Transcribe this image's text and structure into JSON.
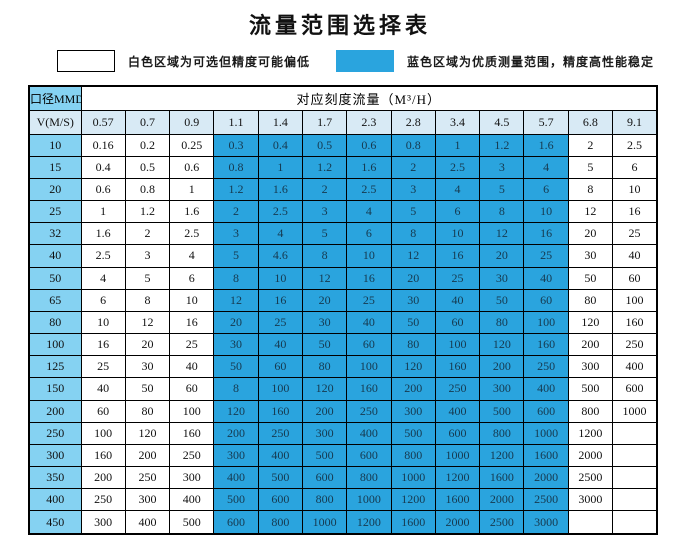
{
  "title": "流量范围选择表",
  "legend": {
    "white_label": "白色区域为可选但精度可能偏低",
    "blue_label": "蓝色区域为优质测量范围，精度高性能稳定"
  },
  "colors": {
    "blue": "#2aa4de",
    "light_blue": "#85d2f2",
    "pale_blue": "#d8eaf5",
    "blue_cell_text": "#16394f",
    "border": "#000000"
  },
  "table": {
    "corner_header": "口径MMDN",
    "flow_header": "对应刻度流量（M³/H）",
    "velocity_label": "V(M/S)",
    "columns": [
      "0.57",
      "0.7",
      "0.9",
      "1.1",
      "1.4",
      "1.7",
      "2.3",
      "2.8",
      "3.4",
      "4.5",
      "5.7",
      "6.8",
      "9.1"
    ],
    "blue_range": {
      "start": 3,
      "end": 10
    },
    "rows": [
      {
        "dn": "10",
        "values": [
          "0.16",
          "0.2",
          "0.25",
          "0.3",
          "0.4",
          "0.5",
          "0.6",
          "0.8",
          "1",
          "1.2",
          "1.6",
          "2",
          "2.5"
        ]
      },
      {
        "dn": "15",
        "values": [
          "0.4",
          "0.5",
          "0.6",
          "0.8",
          "1",
          "1.2",
          "1.6",
          "2",
          "2.5",
          "3",
          "4",
          "5",
          "6"
        ]
      },
      {
        "dn": "20",
        "values": [
          "0.6",
          "0.8",
          "1",
          "1.2",
          "1.6",
          "2",
          "2.5",
          "3",
          "4",
          "5",
          "6",
          "8",
          "10"
        ]
      },
      {
        "dn": "25",
        "values": [
          "1",
          "1.2",
          "1.6",
          "2",
          "2.5",
          "3",
          "4",
          "5",
          "6",
          "8",
          "10",
          "12",
          "16"
        ]
      },
      {
        "dn": "32",
        "values": [
          "1.6",
          "2",
          "2.5",
          "3",
          "4",
          "5",
          "6",
          "8",
          "10",
          "12",
          "16",
          "20",
          "25"
        ]
      },
      {
        "dn": "40",
        "values": [
          "2.5",
          "3",
          "4",
          "5",
          "4.6",
          "8",
          "10",
          "12",
          "16",
          "20",
          "25",
          "30",
          "40"
        ]
      },
      {
        "dn": "50",
        "values": [
          "4",
          "5",
          "6",
          "8",
          "10",
          "12",
          "16",
          "20",
          "25",
          "30",
          "40",
          "50",
          "60"
        ]
      },
      {
        "dn": "65",
        "values": [
          "6",
          "8",
          "10",
          "12",
          "16",
          "20",
          "25",
          "30",
          "40",
          "50",
          "60",
          "80",
          "100"
        ]
      },
      {
        "dn": "80",
        "values": [
          "10",
          "12",
          "16",
          "20",
          "25",
          "30",
          "40",
          "50",
          "60",
          "80",
          "100",
          "120",
          "160"
        ]
      },
      {
        "dn": "100",
        "values": [
          "16",
          "20",
          "25",
          "30",
          "40",
          "50",
          "60",
          "80",
          "100",
          "120",
          "160",
          "200",
          "250"
        ]
      },
      {
        "dn": "125",
        "values": [
          "25",
          "30",
          "40",
          "50",
          "60",
          "80",
          "100",
          "120",
          "160",
          "200",
          "250",
          "300",
          "400"
        ]
      },
      {
        "dn": "150",
        "values": [
          "40",
          "50",
          "60",
          "8",
          "100",
          "120",
          "160",
          "200",
          "250",
          "300",
          "400",
          "500",
          "600"
        ]
      },
      {
        "dn": "200",
        "values": [
          "60",
          "80",
          "100",
          "120",
          "160",
          "200",
          "250",
          "300",
          "400",
          "500",
          "600",
          "800",
          "1000"
        ]
      },
      {
        "dn": "250",
        "values": [
          "100",
          "120",
          "160",
          "200",
          "250",
          "300",
          "400",
          "500",
          "600",
          "800",
          "1000",
          "1200",
          ""
        ]
      },
      {
        "dn": "300",
        "values": [
          "160",
          "200",
          "250",
          "300",
          "400",
          "500",
          "600",
          "800",
          "1000",
          "1200",
          "1600",
          "2000",
          ""
        ]
      },
      {
        "dn": "350",
        "values": [
          "200",
          "250",
          "300",
          "400",
          "500",
          "600",
          "800",
          "1000",
          "1200",
          "1600",
          "2000",
          "2500",
          ""
        ]
      },
      {
        "dn": "400",
        "values": [
          "250",
          "300",
          "400",
          "500",
          "600",
          "800",
          "1000",
          "1200",
          "1600",
          "2000",
          "2500",
          "3000",
          ""
        ]
      },
      {
        "dn": "450",
        "values": [
          "300",
          "400",
          "500",
          "600",
          "800",
          "1000",
          "1200",
          "1600",
          "2000",
          "2500",
          "3000",
          "",
          ""
        ]
      }
    ]
  }
}
